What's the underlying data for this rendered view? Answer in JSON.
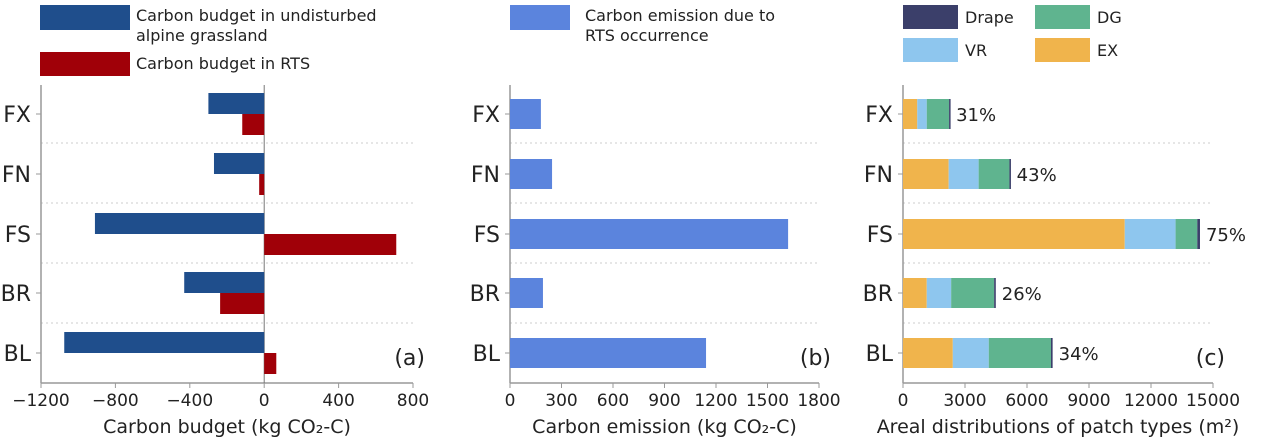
{
  "chart_data": [
    {
      "type": "bar",
      "orientation": "horizontal",
      "panel_label": "(a)",
      "categories": [
        "FX",
        "FN",
        "FS",
        "BR",
        "BL"
      ],
      "series": [
        {
          "name": "Carbon budget in undisturbed alpine grassland",
          "color": "#1f4e8c",
          "values": [
            -300,
            -270,
            -910,
            -430,
            -1075
          ]
        },
        {
          "name": "Carbon budget in RTS",
          "color": "#a00008",
          "values": [
            -118,
            -27,
            710,
            -237,
            65
          ]
        }
      ],
      "xlabel": "Carbon budget (kg CO₂-C)",
      "xlim": [
        -1200,
        800
      ],
      "xticks": [
        -1200,
        -800,
        -400,
        0,
        400,
        800
      ],
      "xtick_labels": [
        "−1200",
        "−800",
        "−400",
        "0",
        "400",
        "800"
      ],
      "legend": "top"
    },
    {
      "type": "bar",
      "orientation": "horizontal",
      "panel_label": "(b)",
      "categories": [
        "FX",
        "FN",
        "FS",
        "BR",
        "BL"
      ],
      "series": [
        {
          "name": "Carbon emission due to RTS occurrence",
          "color": "#5b84dd",
          "values": [
            180,
            245,
            1620,
            192,
            1142
          ]
        }
      ],
      "xlabel": "Carbon emission (kg CO₂-C)",
      "xlim": [
        0,
        1800
      ],
      "xticks": [
        0,
        300,
        600,
        900,
        1200,
        1500,
        1800
      ],
      "xtick_labels": [
        "0",
        "300",
        "600",
        "900",
        "1200",
        "1500",
        "1800"
      ],
      "legend": "top"
    },
    {
      "type": "bar",
      "orientation": "horizontal",
      "stacked": true,
      "panel_label": "(c)",
      "categories": [
        "FX",
        "FN",
        "FS",
        "BR",
        "BL"
      ],
      "series": [
        {
          "name": "EX",
          "color": "#f0b44c",
          "values": [
            690,
            2210,
            10730,
            1150,
            2410
          ]
        },
        {
          "name": "VR",
          "color": "#8ec6ee",
          "values": [
            460,
            1450,
            2460,
            1180,
            1740
          ]
        },
        {
          "name": "DG",
          "color": "#5fb48f",
          "values": [
            1080,
            1490,
            1050,
            2080,
            3010
          ]
        },
        {
          "name": "Drape",
          "color": "#3b3f6a",
          "values": [
            50,
            60,
            130,
            80,
            80
          ]
        }
      ],
      "bar_labels": [
        "31%",
        "43%",
        "75%",
        "26%",
        "34%"
      ],
      "legend_order": [
        "Drape",
        "DG",
        "VR",
        "EX"
      ],
      "xlabel": "Areal distributions of patch types (m²)",
      "xlim": [
        0,
        15000
      ],
      "xticks": [
        0,
        3000,
        6000,
        9000,
        12000,
        15000
      ],
      "xtick_labels": [
        "0",
        "3000",
        "6000",
        "9000",
        "12000",
        "15000"
      ],
      "legend": "top"
    }
  ]
}
